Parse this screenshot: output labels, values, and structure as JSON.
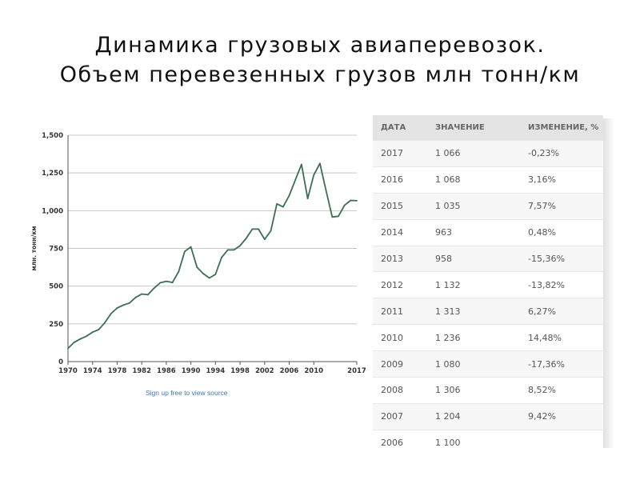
{
  "slide": {
    "title_line1": "Динамика грузовых авиаперевозок.",
    "title_line2": "Объем перевезенных грузов млн тонн/км"
  },
  "chart_link": "Sign up free to view source",
  "colors": {
    "line": "#3b6e55",
    "grid": "#c8c8c8",
    "axis": "#555555",
    "header_bg": "#e4e4e4",
    "link": "#3d78b5"
  },
  "chart_data": {
    "type": "line",
    "title": "",
    "xlabel": "",
    "ylabel": "млн. тонн/км",
    "ylim": [
      0,
      1500
    ],
    "xlim": [
      1970,
      2017
    ],
    "yticks": [
      0,
      250,
      500,
      750,
      1000,
      1250,
      1500
    ],
    "ytick_labels": [
      "0",
      "250",
      "500",
      "750",
      "1,000",
      "1,250",
      "1,500"
    ],
    "xticks": [
      1970,
      1974,
      1978,
      1982,
      1986,
      1990,
      1994,
      1998,
      2002,
      2006,
      2010,
      2017
    ],
    "grid": true,
    "series": [
      {
        "x": [
          1970,
          1971,
          1972,
          1973,
          1974,
          1975,
          1976,
          1977,
          1978,
          1979,
          1980,
          1981,
          1982,
          1983,
          1984,
          1985,
          1986,
          1987,
          1988,
          1989,
          1990,
          1991,
          1992,
          1993,
          1994,
          1995,
          1996,
          1997,
          1998,
          1999,
          2000,
          2001,
          2002,
          2003,
          2004,
          2005,
          2006,
          2007,
          2008,
          2009,
          2010,
          2011,
          2012,
          2013,
          2014,
          2015,
          2016,
          2017
        ],
        "y": [
          88,
          128,
          150,
          168,
          195,
          212,
          258,
          318,
          355,
          374,
          388,
          425,
          448,
          443,
          486,
          522,
          532,
          524,
          596,
          730,
          760,
          625,
          583,
          554,
          578,
          690,
          740,
          740,
          768,
          816,
          878,
          878,
          810,
          866,
          1045,
          1025,
          1100,
          1204,
          1306,
          1080,
          1236,
          1313,
          1132,
          958,
          963,
          1035,
          1068,
          1066
        ]
      }
    ]
  },
  "table": {
    "headers": [
      "ДАТА",
      "ЗНАЧЕНИЕ",
      "ИЗМЕНЕНИЕ, %"
    ],
    "rows": [
      [
        "2017",
        "1 066",
        "-0,23%"
      ],
      [
        "2016",
        "1 068",
        "3,16%"
      ],
      [
        "2015",
        "1 035",
        "7,57%"
      ],
      [
        "2014",
        "963",
        "0,48%"
      ],
      [
        "2013",
        "958",
        "-15,36%"
      ],
      [
        "2012",
        "1 132",
        "-13,82%"
      ],
      [
        "2011",
        "1 313",
        "6,27%"
      ],
      [
        "2010",
        "1 236",
        "14,48%"
      ],
      [
        "2009",
        "1 080",
        "-17,36%"
      ],
      [
        "2008",
        "1 306",
        "8,52%"
      ],
      [
        "2007",
        "1 204",
        "9,42%"
      ],
      [
        "2006",
        "1 100",
        ""
      ]
    ]
  }
}
